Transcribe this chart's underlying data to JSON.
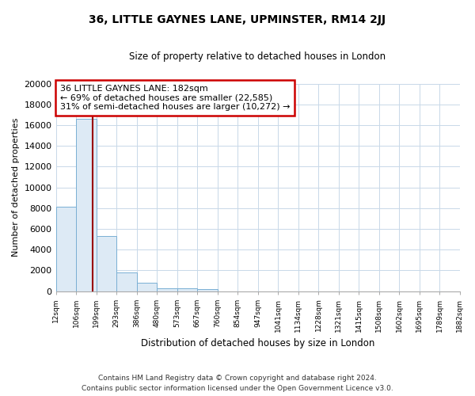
{
  "title": "36, LITTLE GAYNES LANE, UPMINSTER, RM14 2JJ",
  "subtitle": "Size of property relative to detached houses in London",
  "xlabel": "Distribution of detached houses by size in London",
  "ylabel": "Number of detached properties",
  "bar_values": [
    8100,
    16600,
    5300,
    1800,
    800,
    300,
    250,
    200,
    0,
    0,
    0,
    0,
    0,
    0,
    0,
    0,
    0,
    0,
    0,
    0
  ],
  "bar_labels": [
    "12sqm",
    "106sqm",
    "199sqm",
    "293sqm",
    "386sqm",
    "480sqm",
    "573sqm",
    "667sqm",
    "760sqm",
    "854sqm",
    "947sqm",
    "1041sqm",
    "1134sqm",
    "1228sqm",
    "1321sqm",
    "1415sqm",
    "1508sqm",
    "1602sqm",
    "1695sqm",
    "1789sqm",
    "1882sqm"
  ],
  "bar_color_fill": "#ddeaf5",
  "bar_color_edge": "#7aafd4",
  "marker_line_color": "#990000",
  "annotation_text": "36 LITTLE GAYNES LANE: 182sqm\n← 69% of detached houses are smaller (22,585)\n31% of semi-detached houses are larger (10,272) →",
  "ylim": [
    0,
    20000
  ],
  "yticks": [
    0,
    2000,
    4000,
    6000,
    8000,
    10000,
    12000,
    14000,
    16000,
    18000,
    20000
  ],
  "footer1": "Contains HM Land Registry data © Crown copyright and database right 2024.",
  "footer2": "Contains public sector information licensed under the Open Government Licence v3.0.",
  "background_color": "#ffffff",
  "grid_color": "#c8d8e8"
}
